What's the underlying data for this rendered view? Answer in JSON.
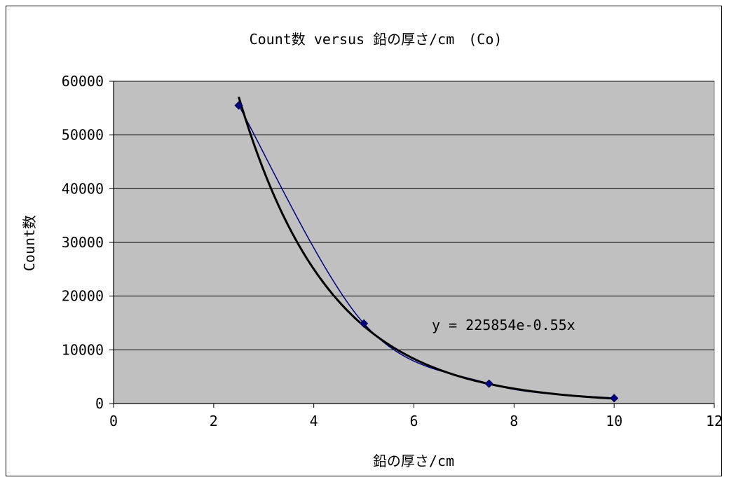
{
  "chart_data": {
    "type": "scatter",
    "title": "Count数 versus 鉛の厚さ/cm　(Co)",
    "xlabel": "鉛の厚さ/cm",
    "ylabel": "Count数",
    "xlim": [
      0,
      12
    ],
    "ylim": [
      0,
      60000
    ],
    "x_ticks": [
      "0",
      "2",
      "4",
      "6",
      "8",
      "10",
      "12"
    ],
    "y_ticks": [
      "0",
      "10000",
      "20000",
      "30000",
      "40000",
      "50000",
      "60000"
    ],
    "grid": "horizontal",
    "legend": "none",
    "plot_background": "#c0c0c0",
    "series": [
      {
        "x": [
          2.5,
          5,
          7.5,
          10
        ],
        "y": [
          55500,
          14900,
          3700,
          1000
        ],
        "marker": "diamond",
        "marker_color": "#000080",
        "line_color": "#000080",
        "line": "smoothed"
      }
    ],
    "trendline": {
      "type": "exponential",
      "a": 225854,
      "b": -0.55,
      "x_range": [
        2.5,
        10
      ],
      "color": "#000000",
      "equation": "y = 225854e-0.55x"
    }
  }
}
